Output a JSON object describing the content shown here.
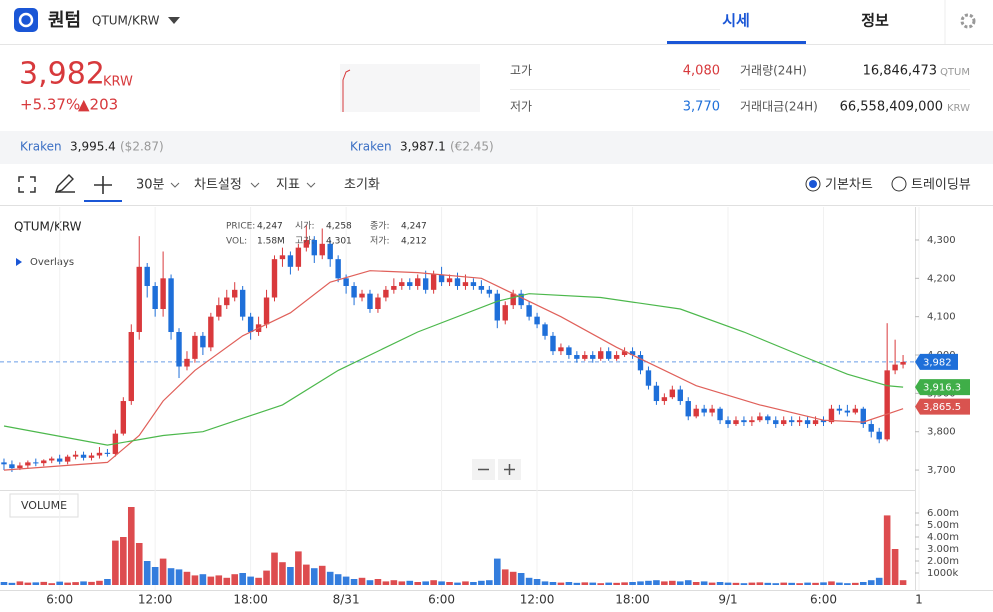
{
  "header": {
    "coin": "퀀텀",
    "pair": "QTUM/KRW",
    "tabs": [
      "시세",
      "정보"
    ]
  },
  "price_panel": {
    "price": "3,982",
    "unit": "KRW",
    "change_rate": "+5.37%",
    "change_amount": "▲203",
    "stats": [
      {
        "label": "고가",
        "value": "4,080"
      },
      {
        "label": "저가",
        "value": "3,770"
      },
      {
        "label": "거래량(24H)",
        "value": "16,846,473",
        "unit": "QTUM"
      },
      {
        "label": "거래대금(24H)",
        "value": "66,558,409,000",
        "unit": "KRW"
      }
    ]
  },
  "exchanges": [
    {
      "name": "Kraken",
      "price": "3,995.4",
      "fx": "($2.87)"
    },
    {
      "name": "Kraken",
      "price": "3,987.1",
      "fx": "(€2.45)"
    }
  ],
  "toolbar": {
    "interval": "30분",
    "settings": "차트설정",
    "indicators": "지표",
    "reset": "초기화",
    "modes": [
      "기본차트",
      "트레이딩뷰"
    ]
  },
  "chart_data": {
    "type": "candlestick",
    "title": "QTUM/KRW",
    "overlays": "Overlays",
    "volume_title": "VOLUME",
    "legend": [
      {
        "label": "PRICE:",
        "value": "4,247"
      },
      {
        "label": "시가:",
        "value": "4,258"
      },
      {
        "label": "종가:",
        "value": "4,247"
      },
      {
        "label": "VOL:",
        "value": "1.58M"
      },
      {
        "label": "고가:",
        "value": "4,301"
      },
      {
        "label": "저가:",
        "value": "4,212"
      }
    ],
    "up_color": "#d9393c",
    "down_color": "#1e6fd9",
    "open": [
      3720,
      3715,
      3705,
      3712,
      3720,
      3718,
      3725,
      3730,
      3722,
      3735,
      3740,
      3732,
      3738,
      3745,
      3742,
      3795,
      3880,
      4060,
      4230,
      4180,
      4120,
      4200,
      4060,
      3970,
      3990,
      4050,
      4020,
      4100,
      4130,
      4150,
      4170,
      4100,
      4060,
      4080,
      4150,
      4250,
      4260,
      4230,
      4280,
      4300,
      4260,
      4290,
      4250,
      4200,
      4180,
      4150,
      4160,
      4120,
      4150,
      4170,
      4180,
      4190,
      4180,
      4200,
      4170,
      4210,
      4190,
      4200,
      4180,
      4190,
      4180,
      4170,
      4160,
      4090,
      4130,
      4160,
      4130,
      4100,
      4080,
      4050,
      4010,
      4020,
      4000,
      3990,
      4000,
      3990,
      4010,
      3990,
      4000,
      4010,
      4000,
      3960,
      3920,
      3880,
      3890,
      3910,
      3880,
      3840,
      3860,
      3850,
      3860,
      3830,
      3820,
      3830,
      3825,
      3830,
      3840,
      3830,
      3820,
      3830,
      3825,
      3830,
      3820,
      3830,
      3825,
      3860,
      3855,
      3850,
      3860,
      3820,
      3800,
      3780,
      3960,
      3975
    ],
    "high": [
      3730,
      3725,
      3720,
      3725,
      3730,
      3728,
      3735,
      3740,
      3740,
      3750,
      3748,
      3745,
      3760,
      3755,
      3805,
      3890,
      4080,
      4310,
      4240,
      4190,
      4270,
      4210,
      4070,
      4010,
      4060,
      4060,
      4110,
      4150,
      4170,
      4190,
      4180,
      4110,
      4100,
      4170,
      4260,
      4280,
      4270,
      4290,
      4340,
      4310,
      4330,
      4300,
      4260,
      4210,
      4190,
      4170,
      4170,
      4160,
      4180,
      4200,
      4200,
      4200,
      4210,
      4220,
      4220,
      4230,
      4210,
      4215,
      4210,
      4200,
      4195,
      4180,
      4170,
      4140,
      4170,
      4170,
      4140,
      4110,
      4085,
      4060,
      4030,
      4025,
      4010,
      4010,
      4010,
      4020,
      4020,
      4010,
      4020,
      4020,
      4010,
      3970,
      3930,
      3900,
      3920,
      3920,
      3890,
      3870,
      3870,
      3870,
      3865,
      3840,
      3840,
      3840,
      3840,
      3850,
      3845,
      3840,
      3840,
      3840,
      3840,
      3840,
      3840,
      3840,
      3870,
      3870,
      3870,
      3870,
      3865,
      3830,
      3810,
      4083,
      4040,
      4000
    ],
    "low": [
      3700,
      3695,
      3700,
      3705,
      3710,
      3710,
      3718,
      3715,
      3715,
      3728,
      3725,
      3725,
      3730,
      3735,
      3735,
      3790,
      3870,
      4040,
      4150,
      4100,
      4100,
      4040,
      3940,
      3960,
      3980,
      4000,
      4010,
      4090,
      4120,
      4140,
      4090,
      4040,
      4050,
      4070,
      4140,
      4230,
      4210,
      4220,
      4270,
      4240,
      4250,
      4230,
      4190,
      4160,
      4130,
      4140,
      4110,
      4110,
      4140,
      4160,
      4170,
      4170,
      4170,
      4160,
      4160,
      4180,
      4180,
      4170,
      4170,
      4170,
      4160,
      4150,
      4070,
      4080,
      4120,
      4120,
      4090,
      4070,
      4040,
      4000,
      4000,
      3990,
      3980,
      3985,
      3980,
      3985,
      3985,
      3985,
      3995,
      3990,
      3950,
      3910,
      3870,
      3870,
      3885,
      3870,
      3830,
      3835,
      3840,
      3840,
      3820,
      3810,
      3815,
      3815,
      3815,
      3825,
      3820,
      3810,
      3815,
      3815,
      3815,
      3810,
      3815,
      3815,
      3820,
      3845,
      3840,
      3845,
      3810,
      3785,
      3770,
      3775,
      3950,
      3965
    ],
    "close": [
      3715,
      3705,
      3712,
      3720,
      3718,
      3725,
      3730,
      3722,
      3735,
      3740,
      3732,
      3738,
      3745,
      3742,
      3795,
      3880,
      4060,
      4230,
      4180,
      4120,
      4200,
      4060,
      3970,
      3990,
      4050,
      4020,
      4100,
      4130,
      4150,
      4170,
      4100,
      4060,
      4080,
      4150,
      4250,
      4260,
      4230,
      4280,
      4300,
      4260,
      4290,
      4250,
      4200,
      4180,
      4150,
      4160,
      4120,
      4150,
      4170,
      4180,
      4190,
      4180,
      4200,
      4170,
      4210,
      4190,
      4200,
      4180,
      4190,
      4180,
      4170,
      4160,
      4090,
      4130,
      4160,
      4130,
      4100,
      4080,
      4050,
      4010,
      4020,
      4000,
      3990,
      4000,
      3990,
      4010,
      3990,
      4000,
      4010,
      4000,
      3960,
      3920,
      3880,
      3890,
      3910,
      3880,
      3840,
      3860,
      3850,
      3860,
      3830,
      3820,
      3830,
      3825,
      3830,
      3840,
      3830,
      3820,
      3830,
      3825,
      3830,
      3820,
      3830,
      3825,
      3860,
      3855,
      3850,
      3860,
      3820,
      3800,
      3780,
      3960,
      3975,
      3982
    ],
    "volume": [
      250000,
      180000,
      300000,
      200000,
      220000,
      260000,
      150000,
      280000,
      200000,
      240000,
      300000,
      260000,
      350000,
      500000,
      3700000,
      4000000,
      6500000,
      3500000,
      2000000,
      1500000,
      2200000,
      1400000,
      1300000,
      1100000,
      800000,
      900000,
      700000,
      800000,
      600000,
      900000,
      1000000,
      700000,
      600000,
      1200000,
      2700000,
      1900000,
      1500000,
      2800000,
      1700000,
      1400000,
      1600000,
      1100000,
      900000,
      700000,
      500000,
      600000,
      400000,
      500000,
      300000,
      400000,
      300000,
      350000,
      250000,
      300000,
      400000,
      300000,
      250000,
      200000,
      300000,
      250000,
      350000,
      400000,
      2200000,
      1300000,
      1100000,
      1000000,
      600000,
      500000,
      300000,
      250000,
      200000,
      250000,
      180000,
      220000,
      200000,
      150000,
      200000,
      180000,
      220000,
      250000,
      300000,
      350000,
      400000,
      300000,
      350000,
      300000,
      400000,
      250000,
      300000,
      200000,
      250000,
      200000,
      180000,
      150000,
      200000,
      220000,
      180000,
      150000,
      200000,
      180000,
      150000,
      200000,
      180000,
      220000,
      300000,
      200000,
      150000,
      180000,
      250000,
      400000,
      600000,
      5800000,
      3000000,
      400000
    ],
    "series": [
      {
        "color": "#e0605a",
        "x": [
          0,
          13,
          17,
          20,
          24,
          30,
          36,
          41,
          46,
          52,
          60,
          64,
          70,
          77,
          81,
          87,
          95,
          103,
          108,
          113
        ],
        "values": [
          3700,
          3720,
          3790,
          3880,
          3960,
          4050,
          4110,
          4190,
          4220,
          4215,
          4200,
          4160,
          4100,
          4020,
          3980,
          3920,
          3870,
          3830,
          3825,
          3860
        ]
      },
      {
        "color": "#4cb84c",
        "x": [
          0,
          13,
          20,
          25,
          35,
          42,
          52,
          62,
          66,
          75,
          85,
          93,
          100,
          106,
          111,
          113
        ],
        "values": [
          3815,
          3765,
          3790,
          3800,
          3870,
          3960,
          4060,
          4140,
          4160,
          4150,
          4120,
          4060,
          4000,
          3950,
          3920,
          3916.3
        ]
      }
    ],
    "price_tags": [
      {
        "value": 3982,
        "label": "3,982",
        "color": "#1e6fd9"
      },
      {
        "value": 3916.3,
        "label": "3,916.3",
        "color": "#3fae48"
      },
      {
        "value": 3865.5,
        "label": "3,865.5",
        "color": "#d9534f"
      }
    ],
    "ylim": [
      3648,
      4386
    ],
    "yticks": [
      {
        "value": 3700,
        "label": "3,700"
      },
      {
        "value": 3800,
        "label": "3,800"
      },
      {
        "value": 3900,
        "label": "3,900"
      },
      {
        "value": 4000,
        "label": "4,000"
      },
      {
        "value": 4100,
        "label": "4,100"
      },
      {
        "value": 4200,
        "label": "4,200"
      },
      {
        "value": 4300,
        "label": "4,300"
      }
    ],
    "volume_ylim": [
      0,
      7300000
    ],
    "volume_ticks": [
      {
        "value": 1000000,
        "label": "1000k"
      },
      {
        "value": 2000000,
        "label": "2.00m"
      },
      {
        "value": 3000000,
        "label": "3.00m"
      },
      {
        "value": 4000000,
        "label": "4.00m"
      },
      {
        "value": 5000000,
        "label": "5.00m"
      },
      {
        "value": 6000000,
        "label": "6.00m"
      }
    ],
    "xlim": [
      -0.5,
      114.5
    ],
    "xticks": [
      {
        "value": 7,
        "label": "6:00"
      },
      {
        "value": 19,
        "label": "12:00"
      },
      {
        "value": 31,
        "label": "18:00"
      },
      {
        "value": 43,
        "label": "8/31"
      },
      {
        "value": 55,
        "label": "6:00"
      },
      {
        "value": 67,
        "label": "12:00"
      },
      {
        "value": 79,
        "label": "18:00"
      },
      {
        "value": 91,
        "label": "9/1"
      },
      {
        "value": 103,
        "label": "6:00"
      },
      {
        "value": 115,
        "label": "1"
      }
    ]
  }
}
